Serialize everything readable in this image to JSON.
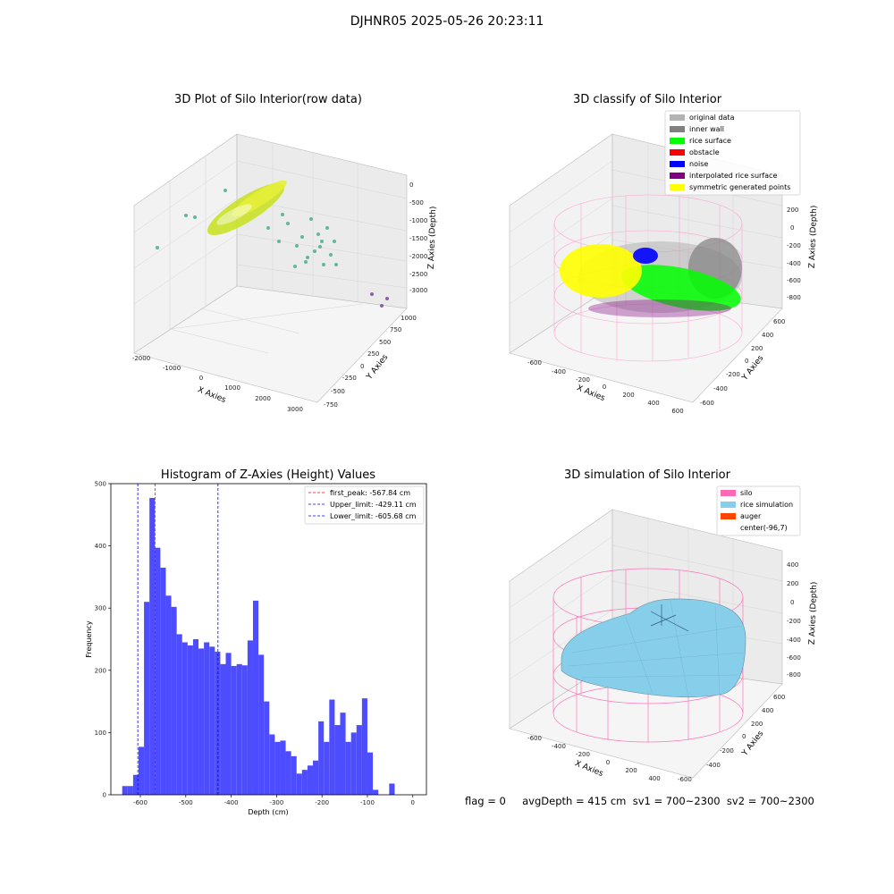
{
  "figure": {
    "suptitle": "DJHNR05 2025-05-26 20:23:11",
    "status_text": "flag = 0     avgDepth = 415 cm  sv1 = 700~2300  sv2 = 700~2300"
  },
  "chart_data": [
    {
      "type": "scatter",
      "projection": "3d",
      "title": "3D Plot of Silo Interior(row data)",
      "xlabel": "X Axies",
      "ylabel": "Y Axies",
      "zlabel": "Z Axies (Depth)",
      "x_ticks": [
        "-2000",
        "-1000",
        "0",
        "1000",
        "2000",
        "3000"
      ],
      "y_ticks": [
        "-750",
        "-500",
        "-250",
        "0",
        "250",
        "500",
        "750",
        "1000"
      ],
      "z_ticks": [
        "0",
        "-500",
        "-1000",
        "-1500",
        "-2000",
        "-2500",
        "-3000"
      ],
      "xlim": [
        -2300,
        3300
      ],
      "ylim": [
        -850,
        1100
      ],
      "zlim": [
        -3500,
        200
      ],
      "grid": true,
      "colors": {
        "main_cloud": "#c8e01c",
        "sparse": "#4caf89",
        "far": "#7b4a9c"
      }
    },
    {
      "type": "scatter",
      "projection": "3d",
      "title": "3D classify of Silo Interior",
      "xlabel": "X Axies",
      "ylabel": "Y Axies",
      "zlabel": "Z Axies (Depth)",
      "x_ticks": [
        "-600",
        "-400",
        "-200",
        "0",
        "200",
        "400",
        "600"
      ],
      "y_ticks": [
        "-600",
        "-400",
        "-200",
        "0",
        "200",
        "400",
        "600"
      ],
      "z_ticks": [
        "200",
        "0",
        "-200",
        "-400",
        "-600",
        "-800"
      ],
      "legend_position": "top-right",
      "legend": [
        {
          "label": "original data",
          "color": "#b3b3b3"
        },
        {
          "label": "inner wall",
          "color": "#808080"
        },
        {
          "label": "rice surface",
          "color": "#00ff00"
        },
        {
          "label": "obstacle",
          "color": "#ff0000"
        },
        {
          "label": "noise",
          "color": "#0000ff"
        },
        {
          "label": "interpolated rice surface",
          "color": "#800080"
        },
        {
          "label": "symmetric generated points",
          "color": "#ffff00"
        }
      ],
      "grid": true
    },
    {
      "type": "bar",
      "title": "Histogram of Z-Axies (Height) Values",
      "xlabel": "Depth (cm)",
      "ylabel": "Frequency",
      "xlim": [
        -665,
        30
      ],
      "ylim": [
        0,
        500
      ],
      "x_ticks": [
        -600,
        -500,
        -400,
        -300,
        -200,
        -100,
        0
      ],
      "y_ticks": [
        0,
        100,
        200,
        300,
        400,
        500
      ],
      "bin_start": -640,
      "bin_width": 12,
      "values": [
        14,
        14,
        32,
        77,
        310,
        477,
        397,
        365,
        320,
        302,
        258,
        245,
        240,
        250,
        235,
        245,
        238,
        230,
        210,
        228,
        207,
        210,
        208,
        248,
        312,
        225,
        150,
        97,
        85,
        87,
        70,
        62,
        34,
        40,
        47,
        55,
        118,
        85,
        153,
        112,
        132,
        85,
        100,
        112,
        155,
        68,
        8,
        0,
        0,
        18
      ],
      "bar_color": "#4d4dff",
      "vlines": [
        {
          "label": "first_peak: -567.84 cm",
          "x": -567.84,
          "color": "#ff0000"
        },
        {
          "label": "Upper_limit: -429.11 cm",
          "x": -429.11,
          "color": "#0000ff"
        },
        {
          "label": "Lower_limit: -605.68 cm",
          "x": -605.68,
          "color": "#0000ff"
        }
      ],
      "legend_position": "top-right"
    },
    {
      "type": "area",
      "projection": "3d",
      "title": "3D simulation of Silo Interior",
      "xlabel": "X Axies",
      "ylabel": "Y Axies",
      "zlabel": "Z Axies (Depth)",
      "x_ticks": [
        "-600",
        "-400",
        "-200",
        "0",
        "200",
        "400"
      ],
      "y_ticks": [
        "-600",
        "-400",
        "-200",
        "0",
        "200",
        "400",
        "600"
      ],
      "z_ticks": [
        "400",
        "200",
        "0",
        "-200",
        "-400",
        "-600",
        "-800"
      ],
      "legend_position": "top-right",
      "legend": [
        {
          "label": "silo",
          "color": "#ff69b4"
        },
        {
          "label": "rice simulation",
          "color": "#87ceeb"
        },
        {
          "label": "auger",
          "color": "#ff4500"
        },
        {
          "label": "center(-96,7)",
          "color": ""
        }
      ],
      "grid": true
    }
  ]
}
